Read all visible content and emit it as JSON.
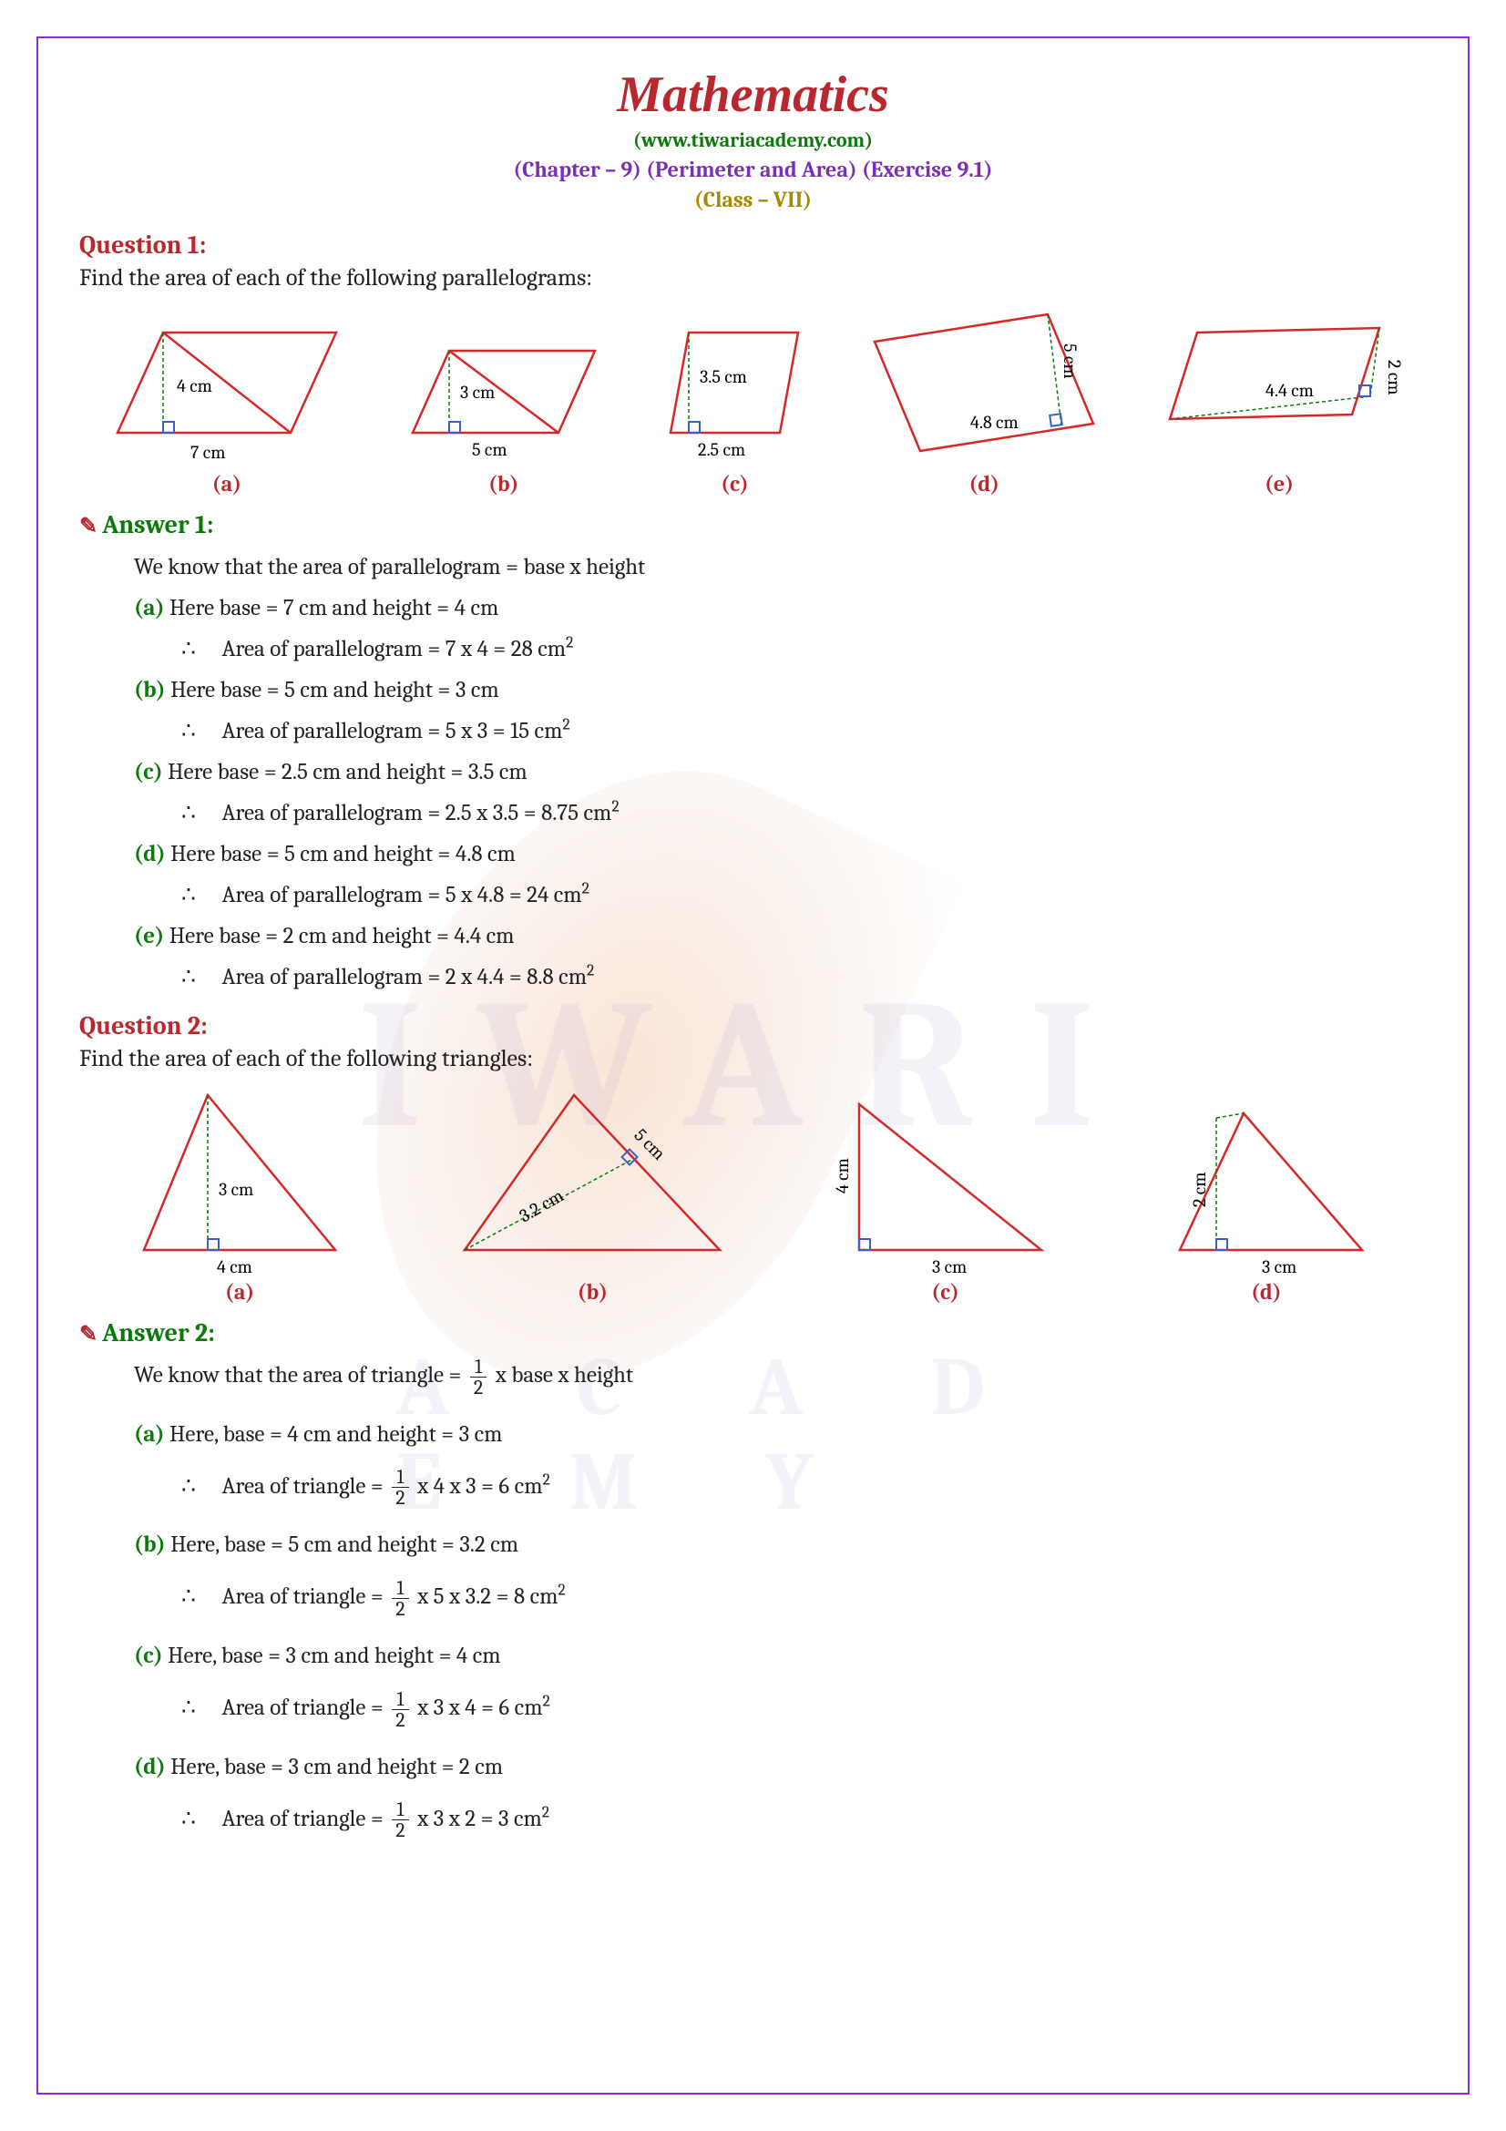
{
  "header": {
    "title": "Mathematics",
    "subtitle": "(www.tiwariacademy.com)",
    "chapter": "(Chapter – 9) (Perimeter and Area) (Exercise 9.1)",
    "class": "(Class – VII)"
  },
  "colors": {
    "title": "#b8292f",
    "subtitle": "#0b7a0b",
    "chapter": "#7b2fb8",
    "class": "#a38a00",
    "question": "#b8292f",
    "answer": "#0b7a0b",
    "part": "#0b7a0b",
    "shape_stroke": "#d62828",
    "height_stroke": "#0b7a0b",
    "angle_fill": "#3a5fcd"
  },
  "q1": {
    "title": "Question 1:",
    "text": "Find the area of each of the following parallelograms:",
    "figures": [
      {
        "label": "(a)",
        "base": "7 cm",
        "height": "4 cm"
      },
      {
        "label": "(b)",
        "base": "5 cm",
        "height": "3 cm"
      },
      {
        "label": "(c)",
        "base": "2.5 cm",
        "height": "3.5 cm"
      },
      {
        "label": "(d)",
        "base": "4.8 cm",
        "side": "5 cm"
      },
      {
        "label": "(e)",
        "base": "4.4 cm",
        "side": "2 cm"
      }
    ]
  },
  "a1": {
    "title": "Answer 1:",
    "intro": "We know that the area of parallelogram = base x height",
    "parts": [
      {
        "label": "(a)",
        "given": "Here base = 7 cm and height = 4 cm",
        "calc": "Area of parallelogram = 7 x 4 = 28 cm²"
      },
      {
        "label": "(b)",
        "given": "Here base = 5 cm and height = 3 cm",
        "calc": "Area of parallelogram = 5 x 3 = 15 cm²"
      },
      {
        "label": "(c)",
        "given": "Here base = 2.5 cm and height = 3.5 cm",
        "calc": "Area of parallelogram = 2.5 x 3.5 = 8.75 cm²"
      },
      {
        "label": "(d)",
        "given": "Here base = 5 cm and height = 4.8 cm",
        "calc": "Area of parallelogram = 5 x 4.8 = 24 cm²"
      },
      {
        "label": "(e)",
        "given": "Here base = 2 cm and height = 4.4 cm",
        "calc": "Area of parallelogram = 2 x 4.4 = 8.8 cm²"
      }
    ]
  },
  "q2": {
    "title": "Question 2:",
    "text": "Find the area of each of the following triangles:",
    "figures": [
      {
        "label": "(a)",
        "base": "4 cm",
        "height": "3 cm"
      },
      {
        "label": "(b)",
        "side": "5 cm",
        "height": "3.2 cm"
      },
      {
        "label": "(c)",
        "base": "3 cm",
        "height": "4 cm"
      },
      {
        "label": "(d)",
        "base": "3 cm",
        "height": "2 cm"
      }
    ]
  },
  "a2": {
    "title": "Answer 2:",
    "intro_pre": "We know that the area of triangle = ",
    "intro_post": " x base x height",
    "parts": [
      {
        "label": "(a)",
        "given": "Here, base = 4 cm and height = 3 cm",
        "calc_pre": "Area of triangle = ",
        "calc_post": " x 4 x 3 = 6 cm²"
      },
      {
        "label": "(b)",
        "given": "Here, base = 5 cm and height = 3.2 cm",
        "calc_pre": "Area of triangle = ",
        "calc_post": " x 5 x 3.2 = 8 cm²"
      },
      {
        "label": "(c)",
        "given": "Here, base = 3 cm and height = 4 cm",
        "calc_pre": "Area of triangle = ",
        "calc_post": " x 3 x 4 = 6 cm²"
      },
      {
        "label": "(d)",
        "given": "Here, base = 3 cm and height = 2 cm",
        "calc_pre": "Area of triangle = ",
        "calc_post": " x 3 x 2 = 3 cm²"
      }
    ]
  },
  "frac": {
    "num": "1",
    "den": "2"
  },
  "therefore": "∴"
}
